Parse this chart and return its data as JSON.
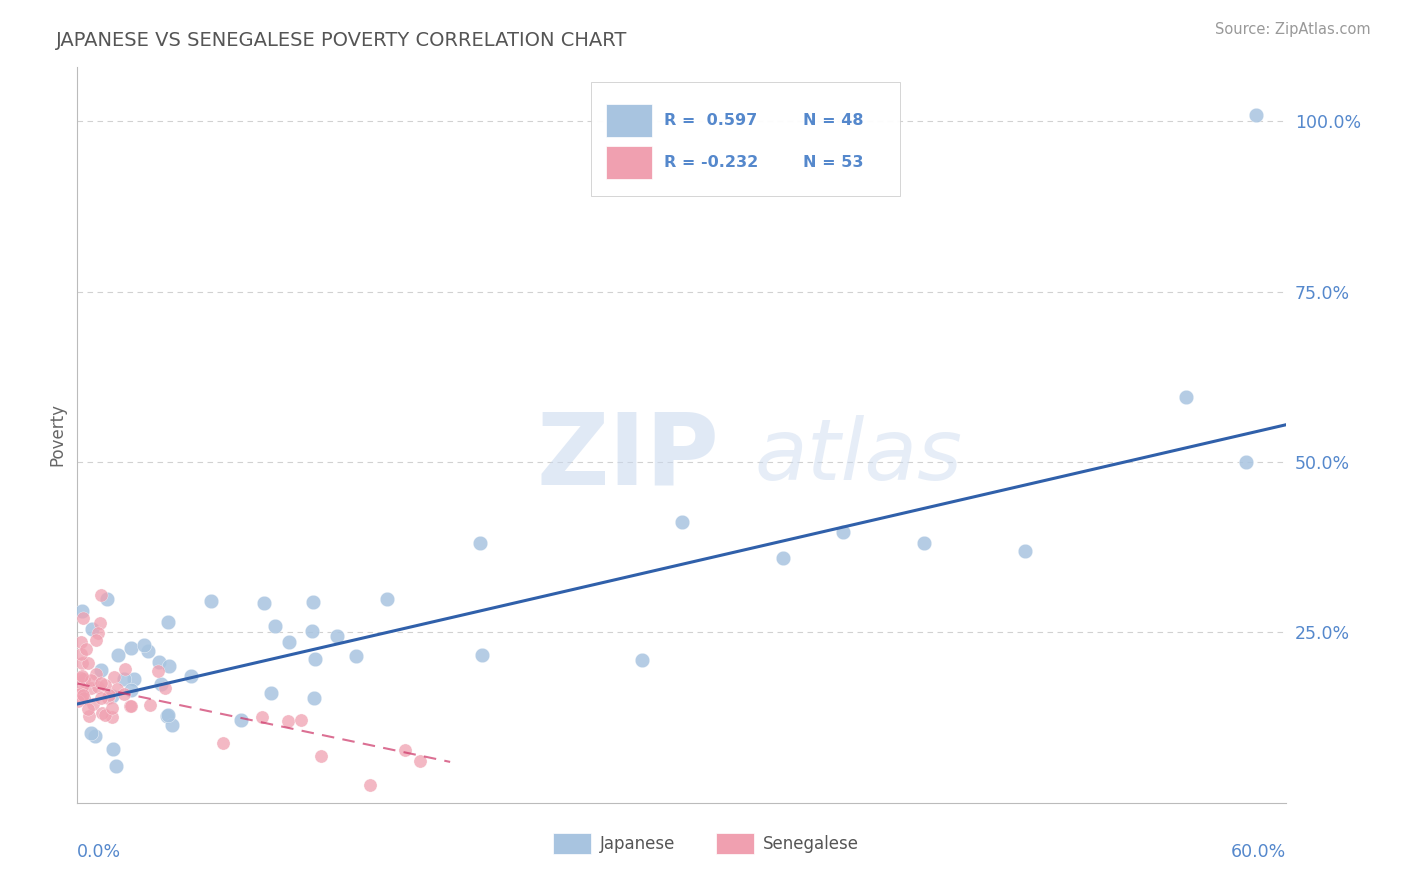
{
  "title": "JAPANESE VS SENEGALESE POVERTY CORRELATION CHART",
  "source": "Source: ZipAtlas.com",
  "ylabel": "Poverty",
  "xlim": [
    0.0,
    0.6
  ],
  "ylim": [
    0.0,
    1.08
  ],
  "yticks": [
    0.25,
    0.5,
    0.75,
    1.0
  ],
  "ytick_labels": [
    "25.0%",
    "50.0%",
    "75.0%",
    "100.0%"
  ],
  "grid_color": "#cccccc",
  "background_color": "#ffffff",
  "japanese_color": "#a8c4e0",
  "senegalese_color": "#f0a0b0",
  "japanese_line_color": "#3060aa",
  "senegalese_line_color": "#cc3366",
  "legend_r_japanese": "R =  0.597",
  "legend_n_japanese": "N = 48",
  "legend_r_senegalese": "R = -0.232",
  "legend_n_senegalese": "N = 53",
  "watermark_zip": "ZIP",
  "watermark_atlas": "atlas",
  "japanese_r": 0.597,
  "japanese_n": 48,
  "senegalese_r": -0.232,
  "senegalese_n": 53,
  "title_color": "#555555",
  "axis_label_color": "#666666",
  "tick_label_color": "#5588cc",
  "legend_text_color": "#5588cc",
  "jp_line_x0": 0.0,
  "jp_line_y0": 0.145,
  "jp_line_x1": 0.6,
  "jp_line_y1": 0.555,
  "sn_line_x0": 0.0,
  "sn_line_y0": 0.175,
  "sn_line_x1": 0.185,
  "sn_line_y1": 0.06
}
